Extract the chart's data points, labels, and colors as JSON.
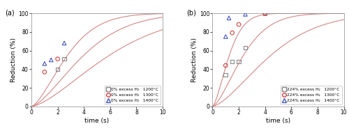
{
  "panel_a": {
    "label": "(a)",
    "curves": [
      {
        "k": 0.055,
        "n": 1.5
      },
      {
        "k": 0.1,
        "n": 1.5
      },
      {
        "k": 0.175,
        "n": 1.5
      }
    ],
    "scatter": [
      {
        "marker": "s",
        "color": "#888888",
        "mfc": "none",
        "points": [
          [
            2.0,
            40
          ],
          [
            2.5,
            51
          ]
        ]
      },
      {
        "marker": "o",
        "color": "#cc4444",
        "mfc": "none",
        "points": [
          [
            1.0,
            37
          ],
          [
            2.0,
            51
          ]
        ]
      },
      {
        "marker": "^",
        "color": "#4455bb",
        "mfc": "none",
        "points": [
          [
            1.0,
            46
          ],
          [
            1.5,
            50
          ],
          [
            2.5,
            68
          ]
        ]
      }
    ],
    "legend": [
      {
        "label": "0% excess H₂   1200°C",
        "marker": "s",
        "color": "#888888"
      },
      {
        "label": "0% excess H₂   1300°C",
        "marker": "o",
        "color": "#cc4444"
      },
      {
        "label": "0% excess H₂   1400°C",
        "marker": "^",
        "color": "#4455bb"
      }
    ]
  },
  "panel_b": {
    "label": "(b)",
    "curves": [
      {
        "k": 0.085,
        "n": 1.5
      },
      {
        "k": 0.22,
        "n": 1.5
      },
      {
        "k": 0.55,
        "n": 1.5
      }
    ],
    "scatter": [
      {
        "marker": "s",
        "color": "#888888",
        "mfc": "none",
        "points": [
          [
            1.0,
            34
          ],
          [
            1.5,
            48
          ],
          [
            2.0,
            48
          ],
          [
            2.5,
            63
          ],
          [
            4.0,
            100
          ]
        ]
      },
      {
        "marker": "o",
        "color": "#cc4444",
        "mfc": "none",
        "points": [
          [
            1.0,
            44
          ],
          [
            1.5,
            79
          ],
          [
            2.0,
            88
          ],
          [
            4.0,
            100
          ]
        ]
      },
      {
        "marker": "^",
        "color": "#4455bb",
        "mfc": "none",
        "points": [
          [
            1.0,
            75
          ],
          [
            1.25,
            95
          ],
          [
            2.5,
            99
          ]
        ]
      }
    ],
    "legend": [
      {
        "label": "224% excess H₂   1200°C",
        "marker": "s",
        "color": "#888888"
      },
      {
        "label": "224% excess H₂   1300°C",
        "marker": "o",
        "color": "#cc4444"
      },
      {
        "label": "224% excess H₂   1400°C",
        "marker": "^",
        "color": "#4455bb"
      }
    ]
  },
  "curve_color": "#d08080",
  "xlabel": "time (s)",
  "ylabel": "Reduction (%)",
  "xlim": [
    0,
    10
  ],
  "ylim": [
    0,
    100
  ],
  "xticks": [
    0,
    2,
    4,
    6,
    8,
    10
  ],
  "yticks": [
    0,
    20,
    40,
    60,
    80,
    100
  ],
  "figsize": [
    5.0,
    1.91
  ],
  "dpi": 100
}
